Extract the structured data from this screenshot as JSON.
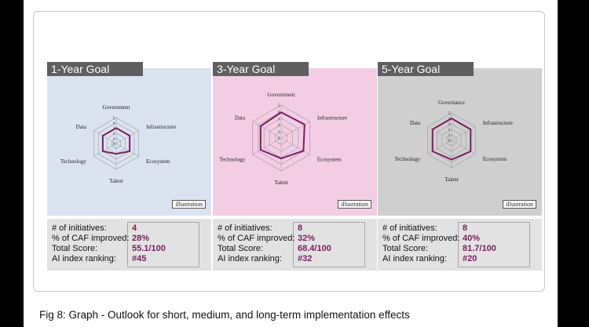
{
  "caption": "Fig 8: Graph - Outlook for short, medium, and long-term implementation effects",
  "colors": {
    "banner": "#5f5f5f",
    "series_line": "#7a1f5e",
    "panel_1": "#dbe3f0",
    "panel_2": "#f2cde3",
    "panel_3": "#cfcfcf",
    "stats_bg": "#e2e2e2",
    "value_text": "#7a1f5e"
  },
  "stats_labels": {
    "initiatives": "# of initiatives:",
    "caf": "% of CAF improved:",
    "score": "Total Score:",
    "ranking": "AI index ranking:"
  },
  "chart_data": [
    {
      "type": "radar",
      "title": "1-Year Goal",
      "badge": "illustration",
      "categories": [
        "Government",
        "Infrastructure",
        "Ecosystem",
        "Talent",
        "Technology",
        "Data"
      ],
      "rlim": [
        0,
        5
      ],
      "ticks": [
        "0",
        "1",
        "2",
        "3",
        "4",
        "5"
      ],
      "series": [
        {
          "values": [
            3,
            3,
            3,
            2,
            3,
            3
          ]
        }
      ],
      "stats": {
        "initiatives": "4",
        "caf": "28%",
        "score": "55.1/100",
        "ranking": "#45"
      }
    },
    {
      "type": "radar",
      "title": "3-Year Goal",
      "badge": "illustration",
      "categories": [
        "Government",
        "Infrastructure",
        "Ecosystem",
        "Talent",
        "Technology",
        "Data"
      ],
      "rlim": [
        0,
        5
      ],
      "ticks": [
        "0",
        "1",
        "2",
        "3",
        "4",
        "5"
      ],
      "series": [
        {
          "values": [
            3.9,
            4.1,
            3.9,
            3.1,
            3.6,
            3.6
          ]
        }
      ],
      "stats": {
        "initiatives": "8",
        "caf": "32%",
        "score": "68.4/100",
        "ranking": "#32"
      }
    },
    {
      "type": "radar",
      "title": "5-Year Goal",
      "badge": "illustration",
      "categories": [
        "Governance",
        "Infrastructure",
        "Ecosystem",
        "Talent",
        "Technology",
        "Data"
      ],
      "rlim": [
        0,
        5
      ],
      "ticks": [
        "0",
        "1",
        "2",
        "3",
        "4",
        "5"
      ],
      "series": [
        {
          "values": [
            4,
            4,
            4,
            3.5,
            4,
            4
          ]
        }
      ],
      "stats": {
        "initiatives": "8",
        "caf": "40%",
        "score": "81.7/100",
        "ranking": "#20"
      }
    }
  ]
}
